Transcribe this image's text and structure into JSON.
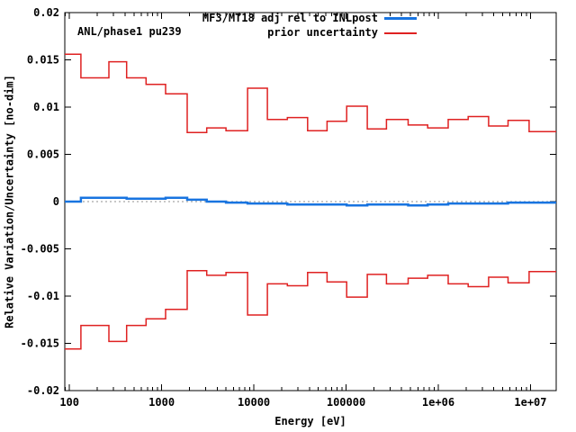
{
  "annotation": "ANL/phase1 pu239",
  "colors": {
    "blue_series": "#1874e0",
    "red_series": "#df2121",
    "axis": "#000000",
    "zero_line": "#909090",
    "background": "#ffffff"
  },
  "legend": {
    "position": "top-right-inside",
    "entries": [
      {
        "label": "MF3/MT18 adj rel to INLpost",
        "color": "#1874e0"
      },
      {
        "label": "prior uncertainty",
        "color": "#df2121"
      }
    ]
  },
  "chart_data": {
    "type": "line",
    "subtype": "step-histogram",
    "title": "",
    "xlabel": "Energy [eV]",
    "ylabel": "Relative Variation/Uncertainty [no-dim]",
    "x_scale": "log",
    "y_scale": "linear",
    "xlim": [
      89,
      19000000
    ],
    "ylim": [
      -0.02,
      0.02
    ],
    "grid": false,
    "zero_line": true,
    "x_ticks": [
      {
        "value": 100,
        "label": "100"
      },
      {
        "value": 1000,
        "label": "1000"
      },
      {
        "value": 10000,
        "label": "10000"
      },
      {
        "value": 100000,
        "label": "100000"
      },
      {
        "value": 1000000,
        "label": "1e+06"
      },
      {
        "value": 10000000,
        "label": "1e+07"
      }
    ],
    "y_ticks": [
      {
        "value": 0.02,
        "label": "0.02"
      },
      {
        "value": 0.015,
        "label": "0.015"
      },
      {
        "value": 0.01,
        "label": "0.01"
      },
      {
        "value": 0.005,
        "label": "0.005"
      },
      {
        "value": 0,
        "label": "0"
      },
      {
        "value": -0.005,
        "label": "-0.005"
      },
      {
        "value": -0.01,
        "label": "-0.01"
      },
      {
        "value": -0.015,
        "label": "-0.015"
      },
      {
        "value": -0.02,
        "label": "-0.02"
      }
    ],
    "group_boundaries_eV": [
      89,
      133,
      268,
      417,
      678,
      1104,
      1892,
      3084,
      4978,
      8540,
      14000,
      23100,
      38300,
      62200,
      101400,
      170000,
      274000,
      471000,
      767000,
      1280000,
      2110000,
      3510000,
      5710000,
      9660000,
      19000000
    ],
    "series": [
      {
        "name": "MF3/MT18 adj rel to INLpost",
        "color": "#1874e0",
        "stroke_width": 2.5,
        "mirror": false,
        "values": [
          0.0,
          0.0004,
          0.0004,
          0.0003,
          0.0003,
          0.0004,
          0.0002,
          0.0,
          -0.0001,
          -0.0002,
          -0.0002,
          -0.0003,
          -0.0003,
          -0.0003,
          -0.0004,
          -0.0003,
          -0.0003,
          -0.0004,
          -0.0003,
          -0.0002,
          -0.0002,
          -0.0002,
          -0.0001,
          -0.0001
        ]
      },
      {
        "name": "prior uncertainty",
        "color": "#df2121",
        "stroke_width": 1.5,
        "mirror": true,
        "values": [
          0.0156,
          0.0131,
          0.0148,
          0.0131,
          0.0124,
          0.0114,
          0.0073,
          0.0078,
          0.0075,
          0.012,
          0.0087,
          0.0089,
          0.0075,
          0.0085,
          0.0101,
          0.0077,
          0.0087,
          0.0081,
          0.0078,
          0.0087,
          0.009,
          0.008,
          0.0086,
          0.0074
        ]
      }
    ]
  }
}
